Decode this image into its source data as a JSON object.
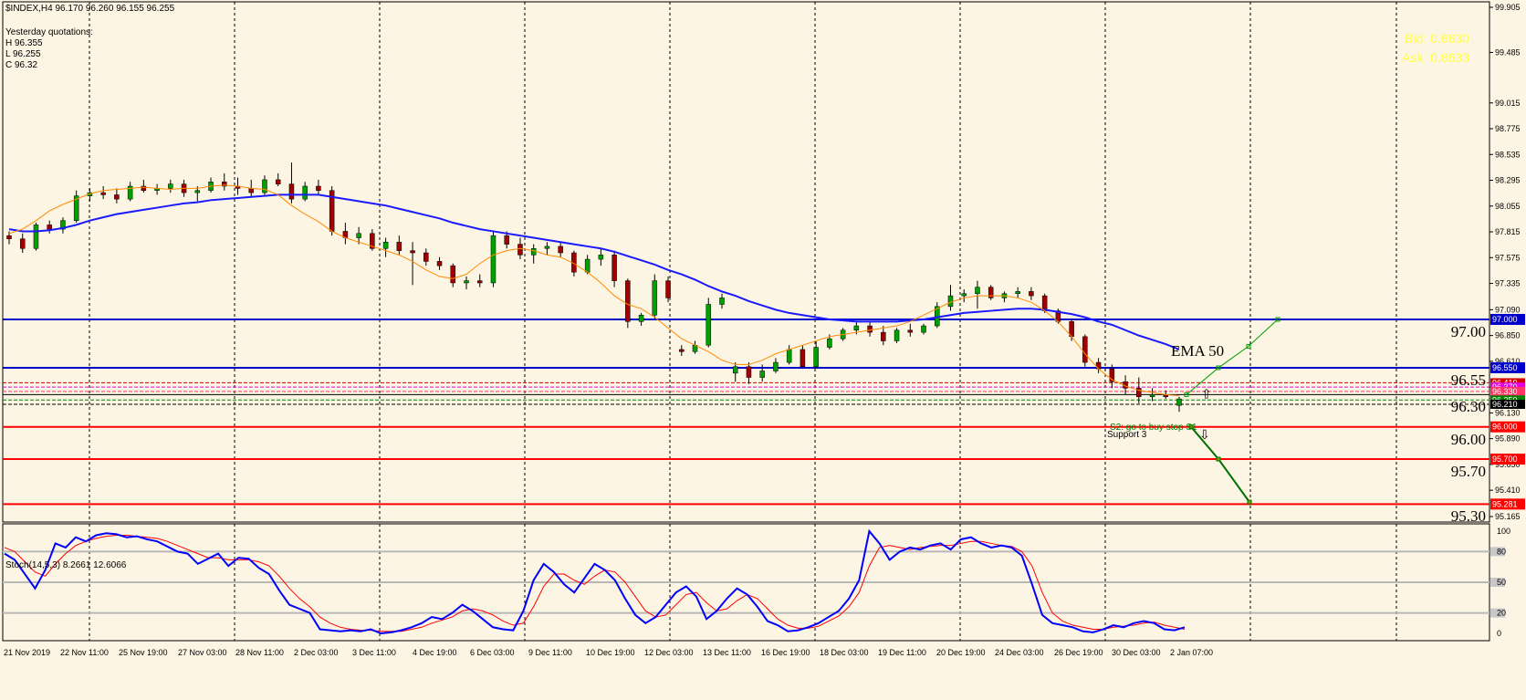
{
  "header": {
    "symbol_line": "$INDEX,H4  96.170 96.260 96.155 96.255",
    "yesterday_title": "Yesterday quotations:",
    "yesterday_high": "H 96.355",
    "yesterday_low": "L 96.255",
    "yesterday_close": "C 96.32"
  },
  "quote_panel": {
    "bid": "Bid: 0.8630",
    "ask": "Ask: 0.8633"
  },
  "stoch_header": "Stoch(14,5,3) 8.2661 12.6066",
  "labels": {
    "ema": "EMA 50",
    "support": "Support 3",
    "s2": "S2: go to buy stop S1"
  },
  "colors": {
    "background": "#fdf5e4",
    "bull": "#00a000",
    "bear": "#a00000",
    "ema50": "#1a1aff",
    "fast_ma": "#ff8a00",
    "resistance": "#0000cc",
    "support": "#ff0000",
    "forecast_up": "#00a000",
    "forecast_down": "#007000",
    "stoch_main": "#0000ff",
    "stoch_signal": "#ff0000"
  },
  "chart_data": {
    "type": "candlestick",
    "symbol": "$INDEX",
    "timeframe": "H4",
    "price_axis_ticks": [
      "99.905",
      "99.485",
      "99.015",
      "98.775",
      "98.535",
      "98.295",
      "98.055",
      "97.815",
      "97.575",
      "97.335",
      "97.090",
      "96.850",
      "96.610",
      "96.370",
      "96.130",
      "95.890",
      "95.650",
      "95.410",
      "95.165"
    ],
    "time_axis_labels": [
      "21 Nov 2019",
      "22 Nov 11:00",
      "25 Nov 19:00",
      "27 Nov 03:00",
      "28 Nov 11:00",
      "2 Dec 03:00",
      "3 Dec 11:00",
      "4 Dec 19:00",
      "6 Dec 03:00",
      "9 Dec 11:00",
      "10 Dec 19:00",
      "12 Dec 03:00",
      "13 Dec 11:00",
      "16 Dec 19:00",
      "18 Dec 03:00",
      "19 Dec 11:00",
      "20 Dec 19:00",
      "24 Dec 03:00",
      "26 Dec 19:00",
      "30 Dec 03:00",
      "2 Jan 07:00"
    ],
    "horizontal_levels": [
      {
        "price": 97.0,
        "tag": "97.000",
        "label": "97.00",
        "kind": "resistance"
      },
      {
        "price": 96.55,
        "tag": "96.550",
        "label": "96.55",
        "kind": "resistance"
      },
      {
        "price": 96.3,
        "tag": "96.300",
        "label": "96.30",
        "kind": "pivot"
      },
      {
        "price": 96.0,
        "tag": "96.000",
        "label": "96.00",
        "kind": "support"
      },
      {
        "price": 95.7,
        "tag": "95.700",
        "label": "95.70",
        "kind": "support"
      },
      {
        "price": 95.281,
        "tag": "95.281",
        "label": "95.30",
        "kind": "support"
      }
    ],
    "small_tags": [
      {
        "price": 96.41,
        "tag": "96.410",
        "color": "#d40000"
      },
      {
        "price": 96.37,
        "tag": "96.370",
        "color": "#e000e0"
      },
      {
        "price": 96.33,
        "tag": "96.330",
        "color": "#ff3366"
      },
      {
        "price": 96.25,
        "tag": "96.250",
        "color": "#008000"
      },
      {
        "price": 96.21,
        "tag": "96.210",
        "color": "#000000"
      }
    ],
    "candles": [
      [
        97.78,
        97.82,
        97.7,
        97.75
      ],
      [
        97.75,
        97.8,
        97.62,
        97.66
      ],
      [
        97.66,
        97.9,
        97.64,
        97.88
      ],
      [
        97.88,
        97.92,
        97.8,
        97.84
      ],
      [
        97.84,
        97.95,
        97.8,
        97.92
      ],
      [
        97.92,
        98.2,
        97.9,
        98.15
      ],
      [
        98.15,
        98.22,
        98.1,
        98.18
      ],
      [
        98.18,
        98.24,
        98.12,
        98.16
      ],
      [
        98.16,
        98.22,
        98.08,
        98.12
      ],
      [
        98.12,
        98.28,
        98.1,
        98.24
      ],
      [
        98.24,
        98.3,
        98.18,
        98.2
      ],
      [
        98.2,
        98.26,
        98.16,
        98.22
      ],
      [
        98.22,
        98.3,
        98.18,
        98.26
      ],
      [
        98.26,
        98.3,
        98.14,
        98.18
      ],
      [
        98.18,
        98.24,
        98.1,
        98.2
      ],
      [
        98.2,
        98.32,
        98.18,
        98.28
      ],
      [
        98.28,
        98.36,
        98.2,
        98.24
      ],
      [
        98.24,
        98.32,
        98.16,
        98.22
      ],
      [
        98.22,
        98.3,
        98.14,
        98.18
      ],
      [
        98.18,
        98.34,
        98.16,
        98.3
      ],
      [
        98.3,
        98.36,
        98.24,
        98.26
      ],
      [
        98.26,
        98.46,
        98.08,
        98.12
      ],
      [
        98.12,
        98.28,
        98.1,
        98.24
      ],
      [
        98.24,
        98.3,
        98.16,
        98.2
      ],
      [
        98.2,
        98.24,
        97.78,
        97.82
      ],
      [
        97.82,
        97.9,
        97.7,
        97.76
      ],
      [
        97.76,
        97.86,
        97.7,
        97.8
      ],
      [
        97.8,
        97.84,
        97.64,
        97.66
      ],
      [
        97.66,
        97.76,
        97.58,
        97.72
      ],
      [
        97.72,
        97.78,
        97.6,
        97.64
      ],
      [
        97.64,
        97.72,
        97.32,
        97.62
      ],
      [
        97.62,
        97.66,
        97.5,
        97.54
      ],
      [
        97.54,
        97.58,
        97.46,
        97.5
      ],
      [
        97.5,
        97.52,
        97.3,
        97.34
      ],
      [
        97.34,
        97.4,
        97.28,
        97.36
      ],
      [
        97.36,
        97.42,
        97.3,
        97.34
      ],
      [
        97.34,
        97.82,
        97.3,
        97.78
      ],
      [
        97.78,
        97.82,
        97.66,
        97.7
      ],
      [
        97.7,
        97.76,
        97.56,
        97.6
      ],
      [
        97.6,
        97.7,
        97.52,
        97.66
      ],
      [
        97.66,
        97.72,
        97.6,
        97.68
      ],
      [
        97.68,
        97.72,
        97.58,
        97.62
      ],
      [
        97.62,
        97.64,
        97.4,
        97.44
      ],
      [
        97.44,
        97.6,
        97.42,
        97.56
      ],
      [
        97.56,
        97.66,
        97.5,
        97.6
      ],
      [
        97.6,
        97.64,
        97.3,
        97.36
      ],
      [
        97.36,
        97.38,
        96.92,
        96.98
      ],
      [
        96.98,
        97.06,
        96.94,
        97.04
      ],
      [
        97.04,
        97.42,
        97.0,
        97.36
      ],
      [
        97.36,
        97.4,
        97.16,
        97.2
      ],
      [
        96.72,
        96.76,
        96.66,
        96.7
      ],
      [
        96.7,
        96.8,
        96.68,
        96.76
      ],
      [
        96.76,
        97.2,
        96.74,
        97.14
      ],
      [
        97.14,
        97.24,
        97.1,
        97.2
      ],
      [
        96.5,
        96.6,
        96.42,
        96.56
      ],
      [
        96.56,
        96.6,
        96.4,
        96.46
      ],
      [
        96.46,
        96.58,
        96.42,
        96.52
      ],
      [
        96.52,
        96.64,
        96.5,
        96.6
      ],
      [
        96.6,
        96.76,
        96.58,
        96.72
      ],
      [
        96.72,
        96.76,
        96.54,
        96.56
      ],
      [
        96.56,
        96.8,
        96.54,
        96.74
      ],
      [
        96.74,
        96.86,
        96.72,
        96.82
      ],
      [
        96.82,
        96.92,
        96.8,
        96.9
      ],
      [
        96.9,
        96.98,
        96.86,
        96.94
      ],
      [
        96.94,
        96.98,
        96.84,
        96.88
      ],
      [
        96.88,
        96.94,
        96.76,
        96.8
      ],
      [
        96.8,
        96.92,
        96.78,
        96.9
      ],
      [
        96.9,
        96.96,
        96.84,
        96.88
      ],
      [
        96.88,
        96.96,
        96.86,
        96.94
      ],
      [
        96.94,
        97.16,
        96.92,
        97.12
      ],
      [
        97.12,
        97.32,
        97.08,
        97.22
      ],
      [
        97.22,
        97.28,
        97.16,
        97.24
      ],
      [
        97.24,
        97.36,
        97.1,
        97.3
      ],
      [
        97.3,
        97.32,
        97.18,
        97.2
      ],
      [
        97.2,
        97.26,
        97.16,
        97.24
      ],
      [
        97.24,
        97.3,
        97.2,
        97.26
      ],
      [
        97.26,
        97.3,
        97.18,
        97.22
      ],
      [
        97.22,
        97.24,
        97.06,
        97.08
      ],
      [
        97.08,
        97.1,
        96.96,
        96.98
      ],
      [
        96.98,
        97.0,
        96.8,
        96.84
      ],
      [
        96.84,
        96.86,
        96.56,
        96.6
      ],
      [
        96.6,
        96.64,
        96.5,
        96.54
      ],
      [
        96.54,
        96.58,
        96.36,
        96.42
      ],
      [
        96.42,
        96.48,
        96.3,
        96.36
      ],
      [
        96.36,
        96.46,
        96.22,
        96.28
      ],
      [
        96.28,
        96.36,
        96.24,
        96.3
      ],
      [
        96.3,
        96.34,
        96.26,
        96.28
      ],
      [
        96.2,
        96.28,
        96.14,
        96.26
      ]
    ],
    "ema50": [
      97.84,
      97.82,
      97.82,
      97.83,
      97.85,
      97.88,
      97.92,
      97.95,
      97.98,
      98.0,
      98.02,
      98.04,
      98.06,
      98.08,
      98.09,
      98.11,
      98.12,
      98.13,
      98.14,
      98.15,
      98.16,
      98.16,
      98.16,
      98.16,
      98.14,
      98.12,
      98.1,
      98.08,
      98.06,
      98.03,
      98.0,
      97.97,
      97.94,
      97.9,
      97.87,
      97.84,
      97.82,
      97.8,
      97.78,
      97.76,
      97.74,
      97.72,
      97.7,
      97.68,
      97.66,
      97.63,
      97.59,
      97.55,
      97.51,
      97.46,
      97.42,
      97.37,
      97.31,
      97.26,
      97.22,
      97.17,
      97.13,
      97.09,
      97.06,
      97.04,
      97.02,
      97.0,
      96.99,
      96.98,
      96.98,
      96.98,
      96.98,
      96.99,
      97.0,
      97.02,
      97.04,
      97.06,
      97.07,
      97.08,
      97.09,
      97.1,
      97.1,
      97.09,
      97.07,
      97.05,
      97.02,
      96.98,
      96.95,
      96.9,
      96.85,
      96.81,
      96.77,
      96.72
    ],
    "fast_ma": [
      97.8,
      97.84,
      97.92,
      98.01,
      98.07,
      98.12,
      98.17,
      98.2,
      98.21,
      98.22,
      98.23,
      98.22,
      98.21,
      98.22,
      98.22,
      98.24,
      98.25,
      98.24,
      98.22,
      98.21,
      98.16,
      98.06,
      97.98,
      97.91,
      97.82,
      97.76,
      97.72,
      97.68,
      97.64,
      97.6,
      97.54,
      97.46,
      97.4,
      97.38,
      97.42,
      97.52,
      97.6,
      97.64,
      97.66,
      97.64,
      97.6,
      97.58,
      97.52,
      97.44,
      97.34,
      97.22,
      97.14,
      97.1,
      97.02,
      96.92,
      96.82,
      96.76,
      96.7,
      96.62,
      96.58,
      96.58,
      96.62,
      96.68,
      96.72,
      96.76,
      96.8,
      96.84,
      96.86,
      96.88,
      96.9,
      96.92,
      96.94,
      96.98,
      97.04,
      97.1,
      97.16,
      97.2,
      97.22,
      97.22,
      97.22,
      97.2,
      97.16,
      97.08,
      96.98,
      96.84,
      96.68,
      96.54,
      96.44,
      96.38,
      96.34,
      96.32,
      96.3,
      96.29
    ],
    "forecast_up": [
      [
        96.3,
        0
      ],
      [
        96.55,
        1
      ],
      [
        96.75,
        2
      ],
      [
        97.0,
        3
      ]
    ],
    "forecast_down": [
      [
        96.0,
        0
      ],
      [
        95.7,
        1
      ],
      [
        95.3,
        2
      ]
    ],
    "stochastic": {
      "name": "Stoch(14,5,3)",
      "main_value": 8.2661,
      "signal_value": 12.6066,
      "levels": [
        80,
        50,
        20
      ],
      "axis_labels": [
        "100",
        "80",
        "50",
        "20",
        "0"
      ],
      "main": [
        78,
        72,
        58,
        44,
        62,
        88,
        84,
        94,
        90,
        96,
        98,
        97,
        94,
        95,
        92,
        90,
        85,
        80,
        78,
        68,
        73,
        78,
        66,
        74,
        73,
        64,
        58,
        42,
        28,
        24,
        20,
        4,
        3,
        2,
        3,
        2,
        4,
        0,
        1,
        3,
        6,
        10,
        16,
        14,
        20,
        28,
        22,
        14,
        6,
        4,
        3,
        22,
        52,
        68,
        60,
        48,
        40,
        54,
        68,
        62,
        52,
        34,
        18,
        10,
        16,
        28,
        40,
        46,
        36,
        14,
        22,
        34,
        44,
        38,
        26,
        12,
        8,
        2,
        3,
        6,
        10,
        16,
        22,
        34,
        52,
        100,
        88,
        72,
        80,
        84,
        82,
        86,
        88,
        82,
        92,
        94,
        88,
        84,
        86,
        84,
        76,
        48,
        18,
        10,
        8,
        6,
        2,
        1,
        4,
        8,
        6,
        10,
        12,
        10,
        4,
        3,
        6
      ],
      "signal": [
        84,
        80,
        70,
        60,
        56,
        68,
        78,
        86,
        90,
        93,
        95,
        96,
        96,
        95,
        94,
        93,
        90,
        86,
        82,
        78,
        74,
        74,
        72,
        72,
        72,
        70,
        66,
        56,
        44,
        34,
        26,
        16,
        10,
        6,
        4,
        3,
        3,
        2,
        2,
        2,
        4,
        6,
        10,
        13,
        16,
        22,
        24,
        22,
        18,
        12,
        8,
        10,
        26,
        46,
        58,
        58,
        52,
        48,
        56,
        62,
        60,
        50,
        36,
        22,
        16,
        18,
        28,
        38,
        40,
        30,
        22,
        24,
        32,
        38,
        34,
        24,
        14,
        8,
        5,
        5,
        7,
        12,
        17,
        26,
        40,
        66,
        84,
        86,
        84,
        82,
        84,
        85,
        86,
        86,
        88,
        90,
        90,
        88,
        86,
        85,
        80,
        66,
        40,
        20,
        12,
        8,
        6,
        4,
        4,
        6,
        7,
        8,
        10,
        11,
        8,
        6,
        4
      ]
    }
  }
}
